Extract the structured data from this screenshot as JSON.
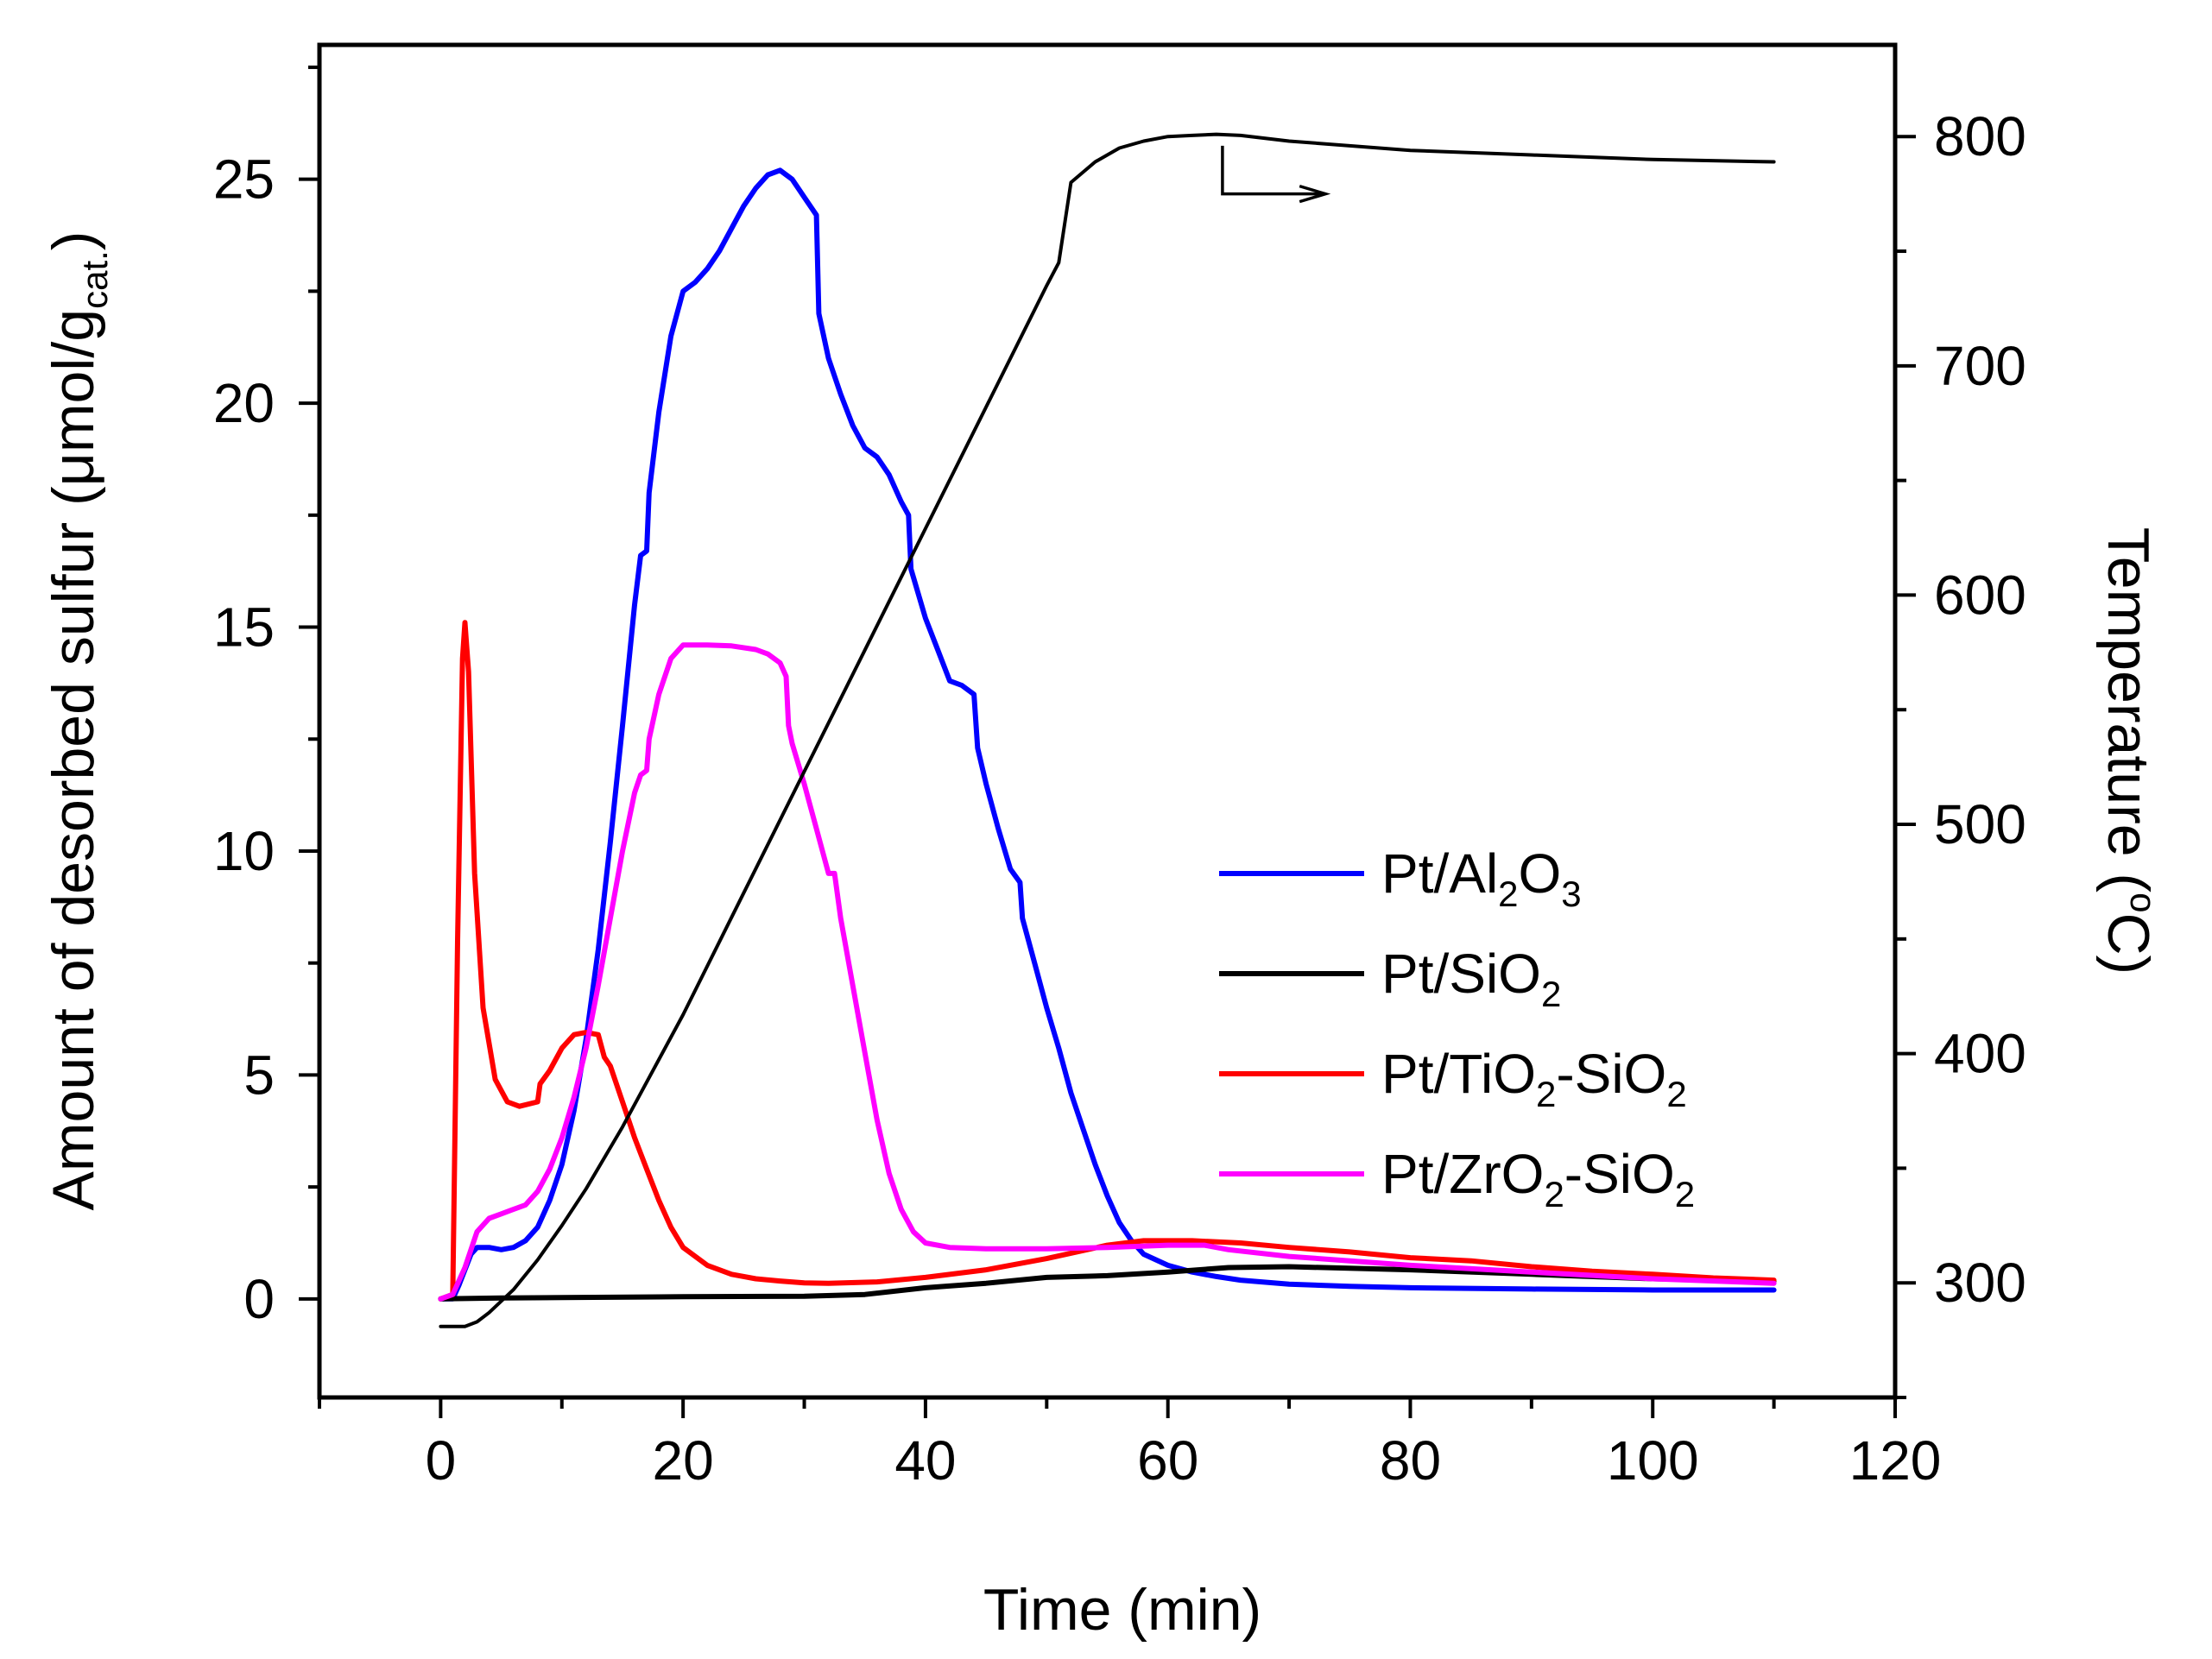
{
  "chart_data": {
    "type": "line",
    "title": "",
    "xlabel": "Time (min)",
    "ylabel_left": {
      "prefix": "Amount of desorbed sulfur (μmol/g",
      "sub": "cat.",
      "suffix": ")"
    },
    "ylabel_right": {
      "prefix": "Temperature (",
      "sup": "o",
      "suffix": "C)"
    },
    "xlim": [
      -10,
      120
    ],
    "ylim_left": [
      -2.2,
      28
    ],
    "ylim_right": [
      250,
      840
    ],
    "xticks": [
      0,
      20,
      40,
      60,
      80,
      100,
      120
    ],
    "xtick_labels": [
      "0",
      "20",
      "40",
      "60",
      "80",
      "100",
      "120"
    ],
    "yticks_left": [
      0,
      5,
      10,
      15,
      20,
      25
    ],
    "ytick_labels_left": [
      "0",
      "5",
      "10",
      "15",
      "20",
      "25"
    ],
    "yticks_right": [
      300,
      400,
      500,
      600,
      700,
      800
    ],
    "ytick_labels_right": [
      "300",
      "400",
      "500",
      "600",
      "700",
      "800"
    ],
    "legend_position": "right-center",
    "series": [
      {
        "name": "Pt/Al2O3",
        "label": {
          "parts": [
            [
              "Pt/Al",
              ""
            ],
            [
              "2",
              "sub"
            ],
            [
              "O",
              ""
            ],
            [
              "3",
              "sub"
            ]
          ]
        },
        "color": "#0000ff",
        "axis": "left",
        "points": [
          [
            0,
            0
          ],
          [
            1,
            0
          ],
          [
            1.5,
            0.3
          ],
          [
            2.5,
            1.0
          ],
          [
            3,
            1.15
          ],
          [
            4,
            1.15
          ],
          [
            5,
            1.1
          ],
          [
            6,
            1.15
          ],
          [
            7,
            1.3
          ],
          [
            8,
            1.6
          ],
          [
            9,
            2.2
          ],
          [
            10,
            3.0
          ],
          [
            11,
            4.2
          ],
          [
            12,
            5.8
          ],
          [
            13,
            7.8
          ],
          [
            14,
            10.2
          ],
          [
            15,
            12.8
          ],
          [
            16,
            15.5
          ],
          [
            16.5,
            16.6
          ],
          [
            17,
            16.7
          ],
          [
            17.2,
            18.0
          ],
          [
            18,
            19.8
          ],
          [
            19,
            21.5
          ],
          [
            20,
            22.5
          ],
          [
            21,
            22.7
          ],
          [
            22,
            23.0
          ],
          [
            23,
            23.4
          ],
          [
            24,
            23.9
          ],
          [
            25,
            24.4
          ],
          [
            26,
            24.8
          ],
          [
            27,
            25.1
          ],
          [
            28,
            25.2
          ],
          [
            29,
            25.0
          ],
          [
            30,
            24.6
          ],
          [
            31,
            24.2
          ],
          [
            31.2,
            22.0
          ],
          [
            32,
            21.0
          ],
          [
            33,
            20.2
          ],
          [
            34,
            19.5
          ],
          [
            35,
            19.0
          ],
          [
            36,
            18.8
          ],
          [
            37,
            18.4
          ],
          [
            38,
            17.8
          ],
          [
            38.6,
            17.5
          ],
          [
            38.8,
            16.3
          ],
          [
            40,
            15.2
          ],
          [
            41,
            14.5
          ],
          [
            42,
            13.8
          ],
          [
            43,
            13.7
          ],
          [
            44,
            13.5
          ],
          [
            44.3,
            12.3
          ],
          [
            45,
            11.5
          ],
          [
            46,
            10.5
          ],
          [
            47,
            9.6
          ],
          [
            47.8,
            9.3
          ],
          [
            48,
            8.5
          ],
          [
            49,
            7.5
          ],
          [
            50,
            6.5
          ],
          [
            51,
            5.6
          ],
          [
            52,
            4.6
          ],
          [
            53,
            3.8
          ],
          [
            54,
            3.0
          ],
          [
            55,
            2.3
          ],
          [
            56,
            1.7
          ],
          [
            57,
            1.3
          ],
          [
            58,
            1.0
          ],
          [
            60,
            0.75
          ],
          [
            62,
            0.6
          ],
          [
            64,
            0.5
          ],
          [
            66,
            0.42
          ],
          [
            70,
            0.33
          ],
          [
            75,
            0.28
          ],
          [
            80,
            0.25
          ],
          [
            90,
            0.22
          ],
          [
            100,
            0.2
          ],
          [
            110,
            0.2
          ]
        ]
      },
      {
        "name": "Pt/SiO2",
        "label": {
          "parts": [
            [
              "Pt/SiO",
              ""
            ],
            [
              "2",
              "sub"
            ]
          ]
        },
        "color": "#000000",
        "axis": "left",
        "points": [
          [
            0,
            0
          ],
          [
            5,
            0.02
          ],
          [
            10,
            0.03
          ],
          [
            20,
            0.05
          ],
          [
            30,
            0.06
          ],
          [
            35,
            0.1
          ],
          [
            40,
            0.25
          ],
          [
            45,
            0.35
          ],
          [
            50,
            0.48
          ],
          [
            55,
            0.52
          ],
          [
            60,
            0.6
          ],
          [
            65,
            0.7
          ],
          [
            70,
            0.72
          ],
          [
            80,
            0.65
          ],
          [
            90,
            0.55
          ],
          [
            100,
            0.45
          ],
          [
            110,
            0.4
          ]
        ]
      },
      {
        "name": "Pt/TiO2-SiO2",
        "label": {
          "parts": [
            [
              "Pt/TiO",
              ""
            ],
            [
              "2",
              "sub"
            ],
            [
              "-SiO",
              ""
            ],
            [
              "2",
              "sub"
            ]
          ]
        },
        "color": "#ff0000",
        "axis": "left",
        "points": [
          [
            0,
            0
          ],
          [
            1,
            0.1
          ],
          [
            1.4,
            8.0
          ],
          [
            1.8,
            14.3
          ],
          [
            2,
            15.1
          ],
          [
            2.3,
            14.0
          ],
          [
            2.8,
            9.5
          ],
          [
            3.5,
            6.5
          ],
          [
            4.5,
            4.9
          ],
          [
            5.5,
            4.4
          ],
          [
            6.5,
            4.3
          ],
          [
            8,
            4.4
          ],
          [
            8.2,
            4.8
          ],
          [
            9,
            5.1
          ],
          [
            10,
            5.6
          ],
          [
            11,
            5.9
          ],
          [
            12,
            5.95
          ],
          [
            13,
            5.9
          ],
          [
            13.5,
            5.4
          ],
          [
            14,
            5.2
          ],
          [
            15,
            4.4
          ],
          [
            16,
            3.6
          ],
          [
            17,
            2.9
          ],
          [
            18,
            2.2
          ],
          [
            19,
            1.6
          ],
          [
            20,
            1.15
          ],
          [
            22,
            0.75
          ],
          [
            24,
            0.55
          ],
          [
            26,
            0.45
          ],
          [
            28,
            0.4
          ],
          [
            30,
            0.36
          ],
          [
            32,
            0.35
          ],
          [
            36,
            0.38
          ],
          [
            40,
            0.48
          ],
          [
            45,
            0.65
          ],
          [
            50,
            0.9
          ],
          [
            55,
            1.2
          ],
          [
            58,
            1.3
          ],
          [
            62,
            1.3
          ],
          [
            66,
            1.25
          ],
          [
            70,
            1.15
          ],
          [
            75,
            1.05
          ],
          [
            80,
            0.92
          ],
          [
            85,
            0.85
          ],
          [
            90,
            0.72
          ],
          [
            95,
            0.62
          ],
          [
            100,
            0.55
          ],
          [
            105,
            0.47
          ],
          [
            110,
            0.42
          ]
        ]
      },
      {
        "name": "Pt/ZrO2-SiO2",
        "label": {
          "parts": [
            [
              "Pt/ZrO",
              ""
            ],
            [
              "2",
              "sub"
            ],
            [
              "-SiO",
              ""
            ],
            [
              "2",
              "sub"
            ]
          ]
        },
        "color": "#ff00ff",
        "axis": "left",
        "points": [
          [
            0,
            0
          ],
          [
            1,
            0.1
          ],
          [
            2,
            0.7
          ],
          [
            3,
            1.5
          ],
          [
            4,
            1.8
          ],
          [
            5,
            1.9
          ],
          [
            6,
            2.0
          ],
          [
            7,
            2.1
          ],
          [
            8,
            2.4
          ],
          [
            9,
            2.9
          ],
          [
            10,
            3.6
          ],
          [
            11,
            4.5
          ],
          [
            12,
            5.6
          ],
          [
            13,
            7.0
          ],
          [
            14,
            8.5
          ],
          [
            15,
            10.0
          ],
          [
            16,
            11.3
          ],
          [
            16.5,
            11.7
          ],
          [
            17,
            11.8
          ],
          [
            17.2,
            12.5
          ],
          [
            18,
            13.5
          ],
          [
            19,
            14.3
          ],
          [
            20,
            14.6
          ],
          [
            22,
            14.6
          ],
          [
            24,
            14.58
          ],
          [
            26,
            14.5
          ],
          [
            27,
            14.4
          ],
          [
            28,
            14.2
          ],
          [
            28.5,
            13.9
          ],
          [
            28.7,
            12.8
          ],
          [
            29,
            12.4
          ],
          [
            30,
            11.5
          ],
          [
            31,
            10.5
          ],
          [
            32,
            9.5
          ],
          [
            32.5,
            9.5
          ],
          [
            33,
            8.5
          ],
          [
            34,
            7.0
          ],
          [
            35,
            5.5
          ],
          [
            36,
            4.0
          ],
          [
            37,
            2.8
          ],
          [
            38,
            2.0
          ],
          [
            39,
            1.5
          ],
          [
            40,
            1.25
          ],
          [
            42,
            1.15
          ],
          [
            45,
            1.12
          ],
          [
            50,
            1.12
          ],
          [
            55,
            1.15
          ],
          [
            60,
            1.2
          ],
          [
            63,
            1.2
          ],
          [
            65,
            1.1
          ],
          [
            70,
            0.95
          ],
          [
            75,
            0.85
          ],
          [
            80,
            0.75
          ],
          [
            90,
            0.6
          ],
          [
            100,
            0.45
          ],
          [
            110,
            0.35
          ]
        ]
      },
      {
        "name": "Temperature",
        "color": "#000000",
        "axis": "right",
        "points": [
          [
            0,
            281
          ],
          [
            1,
            281
          ],
          [
            2,
            281
          ],
          [
            3,
            283
          ],
          [
            4,
            287
          ],
          [
            6,
            297
          ],
          [
            8,
            310
          ],
          [
            10,
            325
          ],
          [
            12,
            341
          ],
          [
            15,
            368
          ],
          [
            20,
            417
          ],
          [
            25,
            470
          ],
          [
            30,
            523
          ],
          [
            35,
            576
          ],
          [
            40,
            629
          ],
          [
            45,
            682
          ],
          [
            50,
            735
          ],
          [
            51,
            745
          ],
          [
            52,
            780
          ],
          [
            54,
            789
          ],
          [
            56,
            795
          ],
          [
            58,
            798
          ],
          [
            60,
            800
          ],
          [
            62,
            800.5
          ],
          [
            64,
            801
          ],
          [
            66,
            800.5
          ],
          [
            70,
            798
          ],
          [
            80,
            794
          ],
          [
            90,
            792
          ],
          [
            100,
            790
          ],
          [
            110,
            789
          ]
        ]
      }
    ],
    "annotations": [
      {
        "type": "arrow",
        "note": "Temperature curve refers to right axis",
        "points": [
          [
            64.5,
            796
          ],
          [
            64.5,
            775
          ],
          [
            73,
            775
          ]
        ]
      }
    ]
  }
}
